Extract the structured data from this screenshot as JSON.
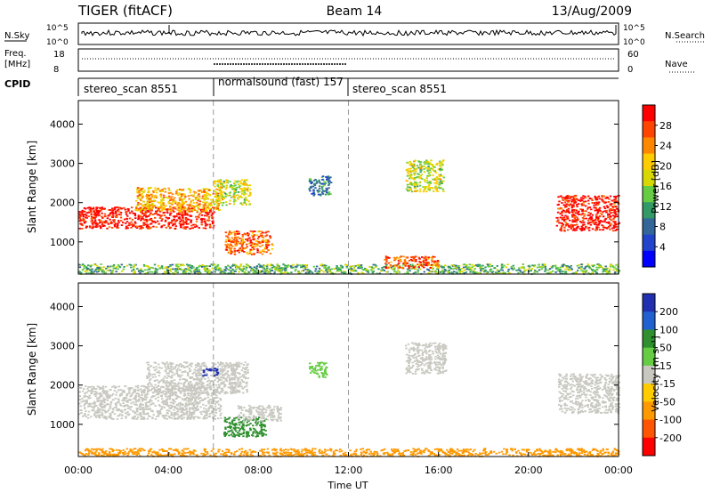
{
  "header": {
    "station": "TIGER (fitACF)",
    "beam": "Beam 14",
    "date": "13/Aug/2009"
  },
  "top_strip": {
    "nsky_label": "N.Sky",
    "nsearch_label": "N.Search",
    "tick_high": "10^5",
    "tick_low": "10^0",
    "freq_label_line1": "Freq.",
    "freq_label_line2": "[MHz]",
    "freq_ticks": [
      "18",
      "8"
    ],
    "nave_label": "Nave",
    "nave_ticks": [
      "60",
      "0"
    ],
    "cpid_label": "CPID"
  },
  "cpid_segments": [
    {
      "label": "stereo_scan 8551",
      "start_hour": 0
    },
    {
      "label": "normalsound (fast) 157",
      "start_hour": 6
    },
    {
      "label": "stereo_scan 8551",
      "start_hour": 12
    }
  ],
  "colorbars": {
    "power": {
      "title": "Power [dB]",
      "ticks": [
        "28",
        "24",
        "20",
        "16",
        "12",
        "8",
        "4"
      ],
      "colors": [
        "#ff0000",
        "#ff4400",
        "#ff8800",
        "#ffcc00",
        "#d8d800",
        "#66cc44",
        "#339966",
        "#336699",
        "#2244cc",
        "#0000ff"
      ]
    },
    "velocity": {
      "title": "Velocity [m s⁻¹]",
      "ticks": [
        "200",
        "100",
        "50",
        "15",
        "-15",
        "-50",
        "-100",
        "-200"
      ],
      "colors": [
        "#2030b0",
        "#2060d0",
        "#309030",
        "#66cc44",
        "#c8c8c0",
        "#ffcc00",
        "#ff9900",
        "#ff5500",
        "#ff0000"
      ]
    }
  },
  "chart_data": [
    {
      "type": "heatmap",
      "name": "power",
      "ylabel": "Slant Range [km]",
      "xlabel": "Time UT",
      "x_ticks": [
        "00:00",
        "04:00",
        "08:00",
        "12:00",
        "16:00",
        "20:00",
        "00:00"
      ],
      "x_tick_hours": [
        0,
        4,
        8,
        12,
        16,
        20,
        24
      ],
      "xlim": [
        0,
        24
      ],
      "y_ticks": [
        1000,
        2000,
        3000,
        4000
      ],
      "ylim": [
        180,
        4600
      ],
      "regions": [
        {
          "t0": 0,
          "t1": 6,
          "r0": 1350,
          "r1": 1900,
          "value": 28
        },
        {
          "t0": 2.5,
          "t1": 6.3,
          "r0": 1800,
          "r1": 2400,
          "value": 20
        },
        {
          "t0": 6,
          "t1": 7.6,
          "r0": 1950,
          "r1": 2600,
          "value": 16
        },
        {
          "t0": 6.5,
          "t1": 8.6,
          "r0": 700,
          "r1": 1300,
          "value": 24
        },
        {
          "t0": 10.2,
          "t1": 11.2,
          "r0": 2200,
          "r1": 2700,
          "value": 8
        },
        {
          "t0": 14.5,
          "t1": 16.2,
          "r0": 2300,
          "r1": 3100,
          "value": 16
        },
        {
          "t0": 21.2,
          "t1": 24,
          "r0": 1300,
          "r1": 2200,
          "value": 28
        },
        {
          "t0": 0,
          "t1": 24,
          "r0": 200,
          "r1": 450,
          "value": 12
        },
        {
          "t0": 13.5,
          "t1": 16,
          "r0": 350,
          "r1": 650,
          "value": 24
        }
      ],
      "dashed_lines_hours": [
        6,
        12
      ]
    },
    {
      "type": "heatmap",
      "name": "velocity",
      "ylabel": "Slant Range [km]",
      "xlabel": "Time UT",
      "x_ticks": [
        "00:00",
        "04:00",
        "08:00",
        "12:00",
        "16:00",
        "20:00",
        "00:00"
      ],
      "x_tick_hours": [
        0,
        4,
        8,
        12,
        16,
        20,
        24
      ],
      "xlim": [
        0,
        24
      ],
      "y_ticks": [
        1000,
        2000,
        3000,
        4000
      ],
      "ylim": [
        180,
        4600
      ],
      "regions": [
        {
          "t0": 0,
          "t1": 6.3,
          "r0": 1150,
          "r1": 2000,
          "value": 0
        },
        {
          "t0": 3,
          "t1": 7.5,
          "r0": 1800,
          "r1": 2600,
          "value": 0
        },
        {
          "t0": 6.4,
          "t1": 8.3,
          "r0": 700,
          "r1": 1200,
          "value": 50
        },
        {
          "t0": 7,
          "t1": 9,
          "r0": 1100,
          "r1": 1500,
          "value": 0
        },
        {
          "t0": 10.2,
          "t1": 11,
          "r0": 2200,
          "r1": 2600,
          "value": 15
        },
        {
          "t0": 14.5,
          "t1": 16.3,
          "r0": 2300,
          "r1": 3100,
          "value": 0
        },
        {
          "t0": 21.3,
          "t1": 24,
          "r0": 1300,
          "r1": 2300,
          "value": 0
        },
        {
          "t0": 0,
          "t1": 24,
          "r0": 200,
          "r1": 400,
          "value": -50
        },
        {
          "t0": 5.5,
          "t1": 6.2,
          "r0": 2250,
          "r1": 2450,
          "value": 200
        }
      ],
      "dashed_lines_hours": [
        6,
        12
      ]
    }
  ]
}
